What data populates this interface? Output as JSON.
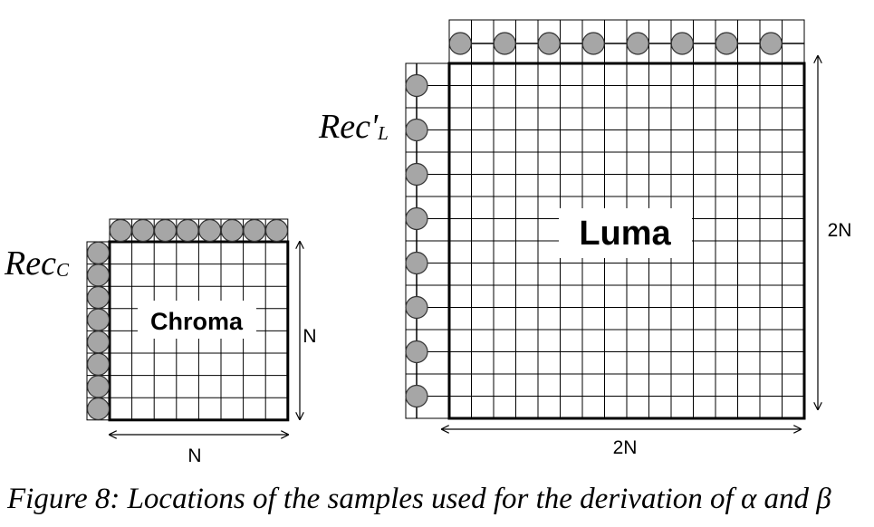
{
  "chroma": {
    "rec_label_main": "Rec",
    "rec_label_sub": "C",
    "block_label": "Chroma",
    "width_label": "N",
    "height_label": "N"
  },
  "luma": {
    "rec_label_main": "Rec'",
    "rec_label_sub": "L",
    "block_label": "Luma",
    "width_label": "2N",
    "height_label": "2N"
  },
  "caption": "Figure 8: Locations of the samples used for the derivation of α and β",
  "colors": {
    "sample_fill": "#a6a6a6",
    "line": "#000000",
    "background": "#ffffff"
  }
}
